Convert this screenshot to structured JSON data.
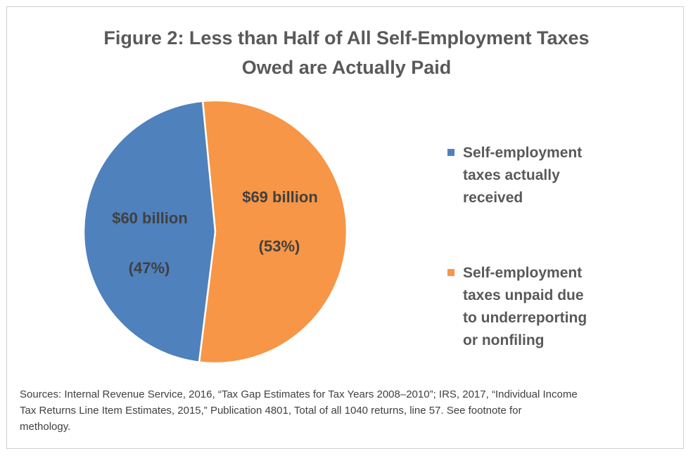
{
  "title_line1": "Figure 2: Less than Half of All Self-Employment Taxes",
  "title_line2": "Owed are Actually Paid",
  "chart_data": {
    "type": "pie",
    "slices": [
      {
        "name": "Self-employment taxes actually received",
        "value": 60,
        "value_label": "$60 billion",
        "percent_label": "(47%)",
        "color": "#4f81bd"
      },
      {
        "name": "Self-employment taxes unpaid due to underreporting or nonfiling",
        "value": 69,
        "value_label": "$69 billion",
        "percent_label": "(53%)",
        "color": "#f79646"
      }
    ],
    "legend_position": "right"
  },
  "legend": [
    {
      "lines": [
        "Self-employment",
        "taxes actually",
        "received"
      ],
      "color": "#4f81bd"
    },
    {
      "lines": [
        "Self-employment",
        "taxes unpaid due",
        "to underreporting",
        "or nonfiling"
      ],
      "color": "#f79646"
    }
  ],
  "source_lines": [
    "Sources: Internal Revenue Service, 2016, “Tax Gap Estimates for Tax Years 2008–2010”; IRS, 2017, “Individual Income",
    "Tax Returns Line Item Estimates, 2015,” Publication 4801, Total of all 1040 returns, line 57. See footnote for",
    "methology."
  ]
}
